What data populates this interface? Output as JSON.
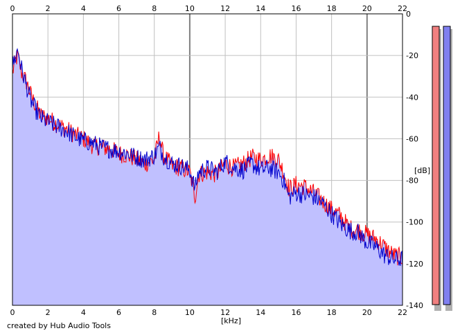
{
  "chart_data": {
    "type": "area",
    "xlabel": "[kHz]",
    "ylabel": "[dB]",
    "xlim": [
      0,
      22
    ],
    "ylim": [
      -140,
      0
    ],
    "x_ticks": [
      0,
      2,
      4,
      6,
      8,
      10,
      12,
      14,
      16,
      18,
      20,
      22
    ],
    "y_ticks": [
      0,
      -20,
      -40,
      -60,
      -80,
      -100,
      -120,
      -140
    ],
    "grid": true,
    "x_tick_position": "top and bottom",
    "y_tick_position": "right",
    "series": [
      {
        "color": "#ff0000",
        "x": [
          0,
          0.2,
          0.3,
          0.5,
          0.8,
          1.0,
          1.3,
          1.6,
          2.0,
          2.5,
          3.0,
          3.5,
          4.0,
          4.5,
          5.0,
          5.5,
          6.0,
          6.5,
          7.0,
          7.5,
          8.0,
          8.3,
          8.5,
          9.0,
          9.5,
          10.0,
          10.3,
          10.5,
          11.0,
          11.5,
          12.0,
          12.5,
          13.0,
          13.5,
          14.0,
          14.5,
          15.0,
          15.3,
          15.6,
          16.0,
          16.5,
          17.0,
          17.5,
          18.0,
          18.5,
          19.0,
          19.5,
          20.0,
          20.5,
          21.0,
          21.5,
          22.0
        ],
        "values": [
          -28,
          -22,
          -20,
          -28,
          -33,
          -38,
          -44,
          -49,
          -50,
          -53,
          -55,
          -58,
          -60,
          -63,
          -64,
          -65,
          -67,
          -68,
          -70,
          -72,
          -70,
          -58,
          -68,
          -73,
          -74,
          -76,
          -88,
          -77,
          -76,
          -77,
          -72,
          -74,
          -72,
          -69,
          -70,
          -68,
          -70,
          -76,
          -84,
          -82,
          -83,
          -86,
          -90,
          -94,
          -97,
          -103,
          -104,
          -106,
          -108,
          -112,
          -116,
          -117
        ]
      },
      {
        "color": "#0000cc",
        "x": [
          0,
          0.2,
          0.3,
          0.5,
          0.8,
          1.0,
          1.3,
          1.6,
          2.0,
          2.5,
          3.0,
          3.5,
          4.0,
          4.5,
          5.0,
          5.5,
          6.0,
          6.5,
          7.0,
          7.5,
          8.0,
          8.3,
          8.5,
          9.0,
          9.5,
          10.0,
          10.3,
          10.5,
          11.0,
          11.5,
          12.0,
          12.5,
          13.0,
          13.5,
          14.0,
          14.5,
          15.0,
          15.3,
          15.6,
          16.0,
          16.5,
          17.0,
          17.5,
          18.0,
          18.5,
          19.0,
          19.5,
          20.0,
          20.5,
          21.0,
          21.5,
          22.0
        ],
        "values": [
          -25,
          -20,
          -17,
          -26,
          -35,
          -41,
          -46,
          -50,
          -52,
          -54,
          -56,
          -59,
          -61,
          -62,
          -64,
          -65,
          -66,
          -67,
          -69,
          -70,
          -68,
          -64,
          -68,
          -72,
          -73,
          -75,
          -84,
          -76,
          -74,
          -76,
          -71,
          -74,
          -75,
          -72,
          -75,
          -74,
          -76,
          -80,
          -88,
          -86,
          -87,
          -88,
          -91,
          -96,
          -101,
          -104,
          -105,
          -110,
          -112,
          -116,
          -118,
          -118
        ]
      }
    ],
    "level_meters": [
      {
        "color": "#f08080"
      },
      {
        "color": "#8080f0"
      }
    ]
  },
  "colors": {
    "area_fill": "#c0c0ff",
    "grid": "#c0c0c0",
    "grid_major": "#808080",
    "plot_border": "#000000"
  },
  "credit": "created by Hub Audio Tools"
}
